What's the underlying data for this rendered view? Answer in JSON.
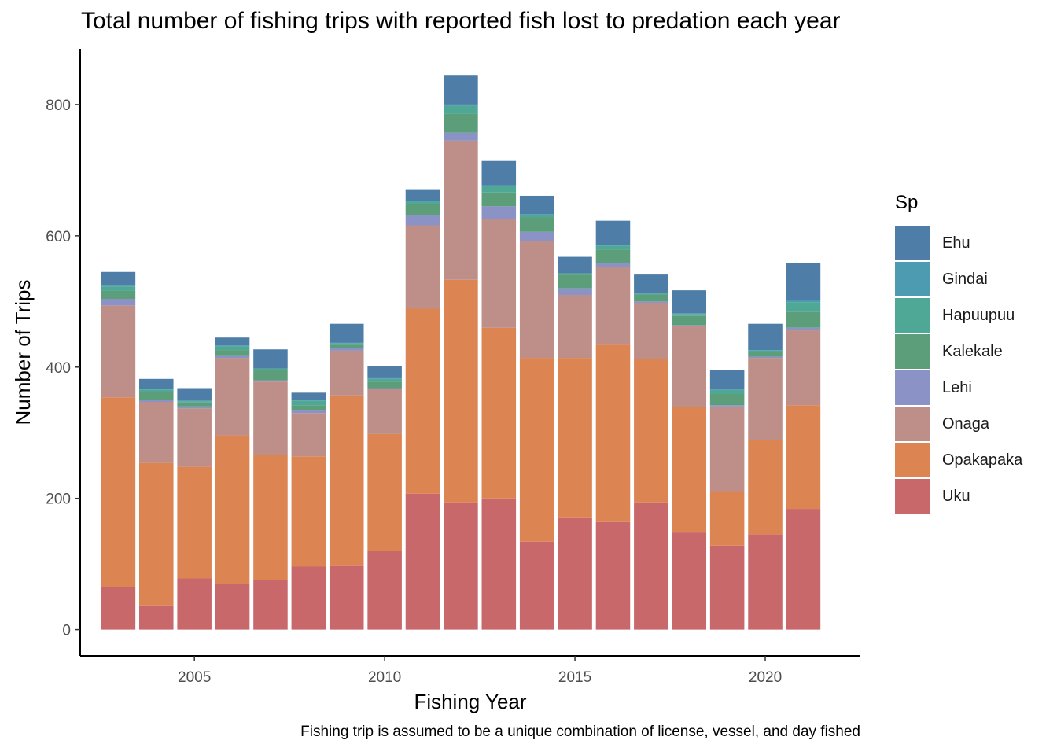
{
  "chart_data": {
    "type": "bar",
    "stacked": true,
    "title": "Total number of fishing trips with reported fish lost to predation each year",
    "xlabel": "Fishing Year",
    "ylabel": "Number of Trips",
    "caption": "Fishing trip is assumed to be a unique combination of license, vessel, and day fished",
    "legend_title": "Sp",
    "legend_position": "right",
    "grid": false,
    "xlim": [
      2002,
      2022.5
    ],
    "ylim": [
      -40,
      885
    ],
    "x_ticks": [
      2005,
      2010,
      2015,
      2020
    ],
    "y_ticks": [
      0,
      200,
      400,
      600,
      800
    ],
    "categories": [
      2003,
      2004,
      2005,
      2006,
      2007,
      2008,
      2009,
      2010,
      2011,
      2012,
      2013,
      2014,
      2015,
      2016,
      2017,
      2018,
      2019,
      2020,
      2021
    ],
    "series": [
      {
        "name": "Uku",
        "color": "#c9686b",
        "values": [
          65,
          37,
          78,
          70,
          76,
          96,
          97,
          120,
          207,
          194,
          200,
          134,
          170,
          164,
          194,
          148,
          128,
          145,
          184
        ]
      },
      {
        "name": "Opakapaka",
        "color": "#dd8453",
        "values": [
          289,
          217,
          170,
          226,
          190,
          168,
          260,
          178,
          282,
          339,
          260,
          280,
          244,
          270,
          218,
          191,
          83,
          144,
          158
        ]
      },
      {
        "name": "Onaga",
        "color": "#be8e88",
        "values": [
          140,
          93,
          89,
          118,
          112,
          66,
          68,
          69,
          127,
          212,
          166,
          178,
          96,
          118,
          86,
          123,
          129,
          125,
          114
        ]
      },
      {
        "name": "Lehi",
        "color": "#8a92c6",
        "values": [
          10,
          3,
          3,
          3,
          2,
          5,
          4,
          1,
          16,
          12,
          19,
          14,
          10,
          6,
          2,
          2,
          2,
          2,
          4
        ]
      },
      {
        "name": "Kalekale",
        "color": "#5c9e7a",
        "values": [
          12,
          12,
          6,
          9,
          15,
          7,
          5,
          10,
          16,
          29,
          21,
          22,
          21,
          21,
          10,
          14,
          17,
          7,
          24
        ]
      },
      {
        "name": "Hapuupuu",
        "color": "#4fa896",
        "values": [
          7,
          4,
          2,
          6,
          3,
          7,
          2,
          4,
          4,
          12,
          10,
          4,
          2,
          6,
          2,
          3,
          6,
          2,
          15
        ]
      },
      {
        "name": "Gindai",
        "color": "#4d9bb0",
        "values": [
          1,
          1,
          1,
          1,
          0,
          1,
          1,
          1,
          1,
          2,
          1,
          1,
          0,
          1,
          0,
          1,
          1,
          1,
          3
        ]
      },
      {
        "name": "Ehu",
        "color": "#4e7ea8",
        "values": [
          21,
          15,
          19,
          12,
          29,
          11,
          29,
          18,
          18,
          44,
          37,
          28,
          25,
          37,
          29,
          35,
          29,
          40,
          56
        ]
      }
    ],
    "legend_order": [
      "Ehu",
      "Gindai",
      "Hapuupuu",
      "Kalekale",
      "Lehi",
      "Onaga",
      "Opakapaka",
      "Uku"
    ]
  }
}
